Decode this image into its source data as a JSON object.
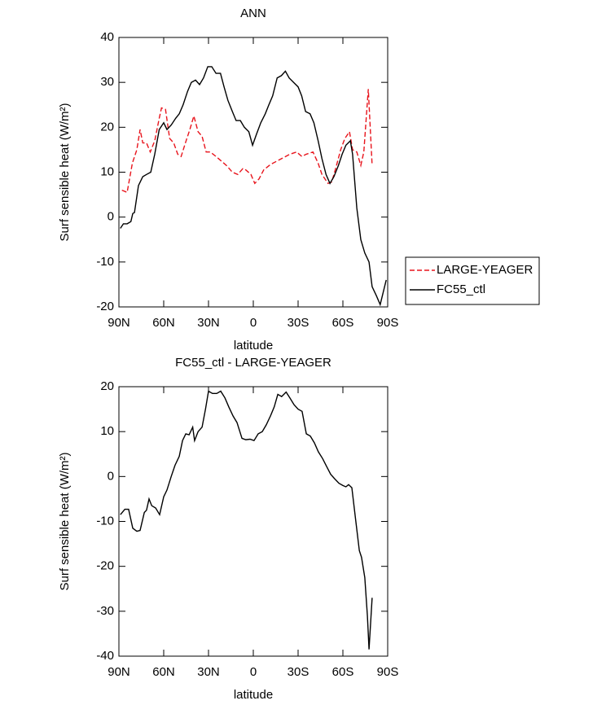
{
  "chart_data": [
    {
      "type": "line",
      "title": "ANN",
      "x_label": "latitude",
      "y_label": "Surf sensible heat (W/m²)",
      "xlim": [
        90,
        -90
      ],
      "ylim": [
        -20,
        40
      ],
      "xticks": [
        {
          "value": 90,
          "label": "90N"
        },
        {
          "value": 60,
          "label": "60N"
        },
        {
          "value": 30,
          "label": "30N"
        },
        0,
        {
          "value": -30,
          "label": "30S"
        },
        {
          "value": -60,
          "label": "60S"
        },
        {
          "value": -90,
          "label": "90S"
        }
      ],
      "yticks": [
        -20,
        -10,
        0,
        10,
        20,
        30,
        40
      ],
      "legend": "right",
      "series": [
        {
          "name": "LARGE-YEAGER",
          "color": "#e8141c",
          "line_style": "dashed",
          "x": [
            88,
            84.5,
            81,
            78,
            75.8,
            74,
            71.5,
            69,
            66,
            63,
            61.5,
            58.8,
            56,
            53.3,
            50.6,
            48.3,
            45,
            42.5,
            39.8,
            37,
            34.3,
            31.6,
            28.8,
            25,
            21.5,
            18,
            14,
            10.4,
            7,
            5,
            1.6,
            -1,
            -3.8,
            -7,
            -11.5,
            -16,
            -20,
            -24.5,
            -29,
            -32.5,
            -35.5,
            -40,
            -43.4,
            -46,
            -50,
            -52.5,
            -55.3,
            -58.5,
            -61.3,
            -64.4,
            -66.5,
            -69.3,
            -72,
            -74,
            -77,
            -79.6
          ],
          "values": [
            6,
            5.5,
            12,
            15,
            19.5,
            16.5,
            16.5,
            14.5,
            17,
            22,
            24.3,
            24,
            17.5,
            16.5,
            14,
            13.5,
            17,
            19.5,
            22.5,
            19,
            18,
            14.5,
            14.5,
            13.5,
            12.5,
            11.5,
            10,
            9.5,
            10.8,
            10.5,
            9.5,
            7.5,
            8.5,
            10.5,
            11.7,
            12.5,
            13.2,
            14,
            14.5,
            13.5,
            14,
            14.5,
            12,
            9.5,
            7.5,
            7.8,
            11,
            15,
            17.5,
            19,
            15,
            14.5,
            11.5,
            14.5,
            28.5,
            11.5
          ]
        },
        {
          "name": "FC55_ctl",
          "color": "#000000",
          "line_style": "solid",
          "x": [
            89,
            87,
            84.5,
            82,
            80.7,
            79.6,
            76.9,
            74,
            71.5,
            68.7,
            66,
            63,
            60,
            57.8,
            55,
            52,
            49.6,
            47,
            44,
            41.5,
            38.7,
            36,
            33.3,
            30.5,
            27.8,
            25,
            22,
            19.6,
            17,
            14,
            11.5,
            8.7,
            6,
            3,
            0.5,
            -2.2,
            -5,
            -8,
            -10.4,
            -13,
            -16,
            -18.8,
            -21.5,
            -24,
            -27,
            -30,
            -32.4,
            -35,
            -38,
            -40.6,
            -43.4,
            -46,
            -48.7,
            -51.3,
            -54,
            -57,
            -59.5,
            -62,
            -65,
            -66.5,
            -69.3,
            -72,
            -74.7,
            -77.5,
            -79.6,
            -82.4,
            -85,
            -89
          ],
          "values": [
            -2.5,
            -1.5,
            -1.5,
            -1,
            0.8,
            1,
            7,
            9,
            9.5,
            10,
            14,
            19.5,
            21,
            19.5,
            20.5,
            22,
            23,
            25,
            28,
            30,
            30.5,
            29.5,
            31,
            33.5,
            33.5,
            32,
            32,
            29,
            26,
            23.5,
            21.5,
            21.5,
            20,
            19,
            16,
            18.5,
            21,
            23,
            25,
            27,
            31,
            31.5,
            32.5,
            31,
            30,
            29,
            27,
            23.5,
            23,
            21,
            17,
            13,
            9.5,
            7.5,
            9,
            11.5,
            14,
            16,
            17,
            14,
            2,
            -5,
            -8,
            -10,
            -15.5,
            -17.5,
            -19.5,
            -14
          ]
        }
      ]
    },
    {
      "type": "line",
      "title": "FC55_ctl - LARGE-YEAGER",
      "x_label": "latitude",
      "y_label": "Surf sensible heat (W/m²)",
      "xlim": [
        90,
        -90
      ],
      "ylim": [
        -40,
        20
      ],
      "xticks": [
        {
          "value": 90,
          "label": "90N"
        },
        {
          "value": 60,
          "label": "60N"
        },
        {
          "value": 30,
          "label": "30N"
        },
        0,
        {
          "value": -30,
          "label": "30S"
        },
        {
          "value": -60,
          "label": "60S"
        },
        {
          "value": -90,
          "label": "90S"
        }
      ],
      "yticks": [
        -40,
        -30,
        -20,
        -10,
        0,
        10,
        20
      ],
      "series": [
        {
          "color": "#000000",
          "line_style": "solid",
          "x": [
            89,
            86,
            83.5,
            80.7,
            78,
            75.8,
            73,
            71.5,
            69.8,
            68,
            65.4,
            62.7,
            60,
            57.8,
            55,
            52.4,
            49.6,
            47.4,
            45.2,
            43,
            40.6,
            39.3,
            37,
            34.3,
            32,
            30,
            27.3,
            24.5,
            21.8,
            19,
            16.4,
            13.6,
            10.9,
            7.6,
            5,
            2.2,
            -0.5,
            -3.3,
            -6,
            -8.7,
            -11.5,
            -14,
            -16.4,
            -19,
            -22,
            -24.5,
            -27.3,
            -30,
            -32.7,
            -35.5,
            -38.2,
            -40.9,
            -43.6,
            -46.4,
            -49,
            -51.8,
            -54.5,
            -57.3,
            -60,
            -62,
            -63.8,
            -66,
            -68.7,
            -71,
            -72.5,
            -74.7,
            -76.4,
            -77.5,
            -79.6
          ],
          "values": [
            -8.5,
            -7.3,
            -7.3,
            -11.5,
            -12.2,
            -12,
            -8,
            -7.5,
            -5,
            -6.5,
            -7,
            -8.5,
            -4.5,
            -3,
            0,
            2.5,
            4.5,
            8,
            9.5,
            9.3,
            11,
            8,
            10,
            11,
            15,
            19,
            18.5,
            18.5,
            19,
            17.5,
            15.5,
            13.5,
            12,
            8.5,
            8.2,
            8.3,
            8,
            9.5,
            10,
            11.5,
            13.5,
            15.5,
            18.3,
            17.8,
            18.8,
            17.5,
            16,
            15,
            14.5,
            9.5,
            9,
            7.5,
            5.5,
            4,
            2.3,
            0.5,
            -0.5,
            -1.5,
            -2,
            -2.3,
            -1.8,
            -2.5,
            -10,
            -16.5,
            -18,
            -22.5,
            -31,
            -38.5,
            -27
          ]
        }
      ]
    }
  ]
}
